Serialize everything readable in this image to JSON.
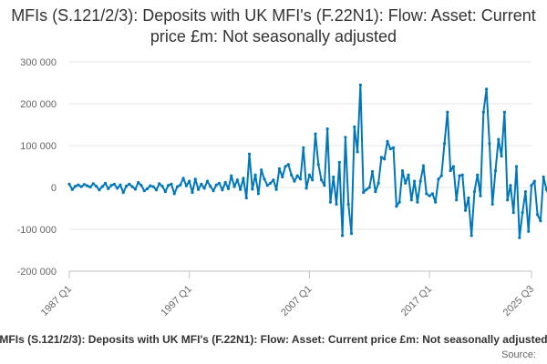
{
  "chart_data": {
    "type": "line",
    "title": "MFIs (S.121/2/3): Deposits with UK MFI's (F.22N1): Flow: Asset: Current price £m: Not seasonally adjusted",
    "xlabel": "",
    "ylabel": "",
    "ylim": [
      -200000,
      300000
    ],
    "yticks": [
      -200000,
      -100000,
      0,
      100000,
      200000,
      300000
    ],
    "ytick_labels": [
      "-200 000",
      "-100 000",
      "0",
      "100 000",
      "200 000",
      "300 000"
    ],
    "xticks": [
      1987,
      1997,
      2007,
      2017,
      2025.5
    ],
    "xtick_labels": [
      "1987 Q1",
      "1997 Q1",
      "2007 Q1",
      "2017 Q1",
      "2025 Q3"
    ],
    "grid": true,
    "legend_position": "bottom",
    "series": [
      {
        "name": "MFIs (S.121/2/3): Deposits with UK MFI's (F.22N1): Flow: Asset: Current price £m: Not seasonally adjusted",
        "color": "#0077bb",
        "x_start": 1987,
        "x_step": 0.25,
        "values": [
          8000,
          -5000,
          3000,
          6000,
          2000,
          7000,
          4000,
          1000,
          9000,
          3000,
          -6000,
          2000,
          10000,
          -3000,
          5000,
          8000,
          -2000,
          6000,
          -12000,
          3000,
          8000,
          2000,
          -4000,
          12000,
          5000,
          -8000,
          -3000,
          4000,
          2000,
          -6000,
          9000,
          3000,
          -10000,
          5000,
          8000,
          -15000,
          2000,
          6000,
          22000,
          4000,
          15000,
          -12000,
          20000,
          -5000,
          8000,
          -2000,
          15000,
          3000,
          -8000,
          6000,
          10000,
          -6000,
          12000,
          -3000,
          28000,
          2000,
          18000,
          -5000,
          22000,
          -25000,
          80000,
          -4000,
          30000,
          -15000,
          42000,
          20000,
          5000,
          10000,
          18000,
          -5000,
          45000,
          25000,
          50000,
          55000,
          30000,
          15000,
          28000,
          20000,
          95000,
          -2000,
          30000,
          18000,
          128000,
          55000,
          18000,
          5000,
          140000,
          -35000,
          25000,
          -40000,
          60000,
          -115000,
          120000,
          -40000,
          -110000,
          145000,
          85000,
          245000,
          -12000,
          -5000,
          0,
          38000,
          -10000,
          10000,
          72000,
          68000,
          110000,
          92000,
          95000,
          -45000,
          -35000,
          40000,
          10000,
          30000,
          -30000,
          15000,
          -35000,
          15000,
          52000,
          -15000,
          -20000,
          -15000,
          -35000,
          20000,
          28000,
          105000,
          180000,
          40000,
          50000,
          -30000,
          28000,
          30000,
          -55000,
          -25000,
          -115000,
          -10000,
          30000,
          -20000,
          180000,
          235000,
          105000,
          -40000,
          40000,
          115000,
          75000,
          180000,
          -30000,
          5000,
          -60000,
          50000,
          -120000,
          -60000,
          -10000,
          -105000,
          5000,
          15000,
          -65000,
          -80000,
          25000,
          -5000,
          -25000
        ]
      }
    ],
    "legend_text": "MFIs (S.121/2/3): Deposits with UK MFI's (F.22N1): Flow: Asset: Current price £m: Not seasonally adjusted",
    "source_label": "Source:"
  }
}
